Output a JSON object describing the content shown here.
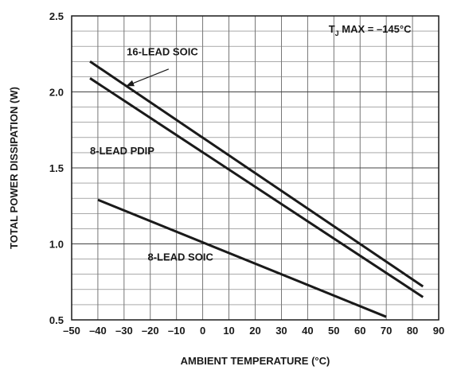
{
  "chart_data": {
    "type": "line",
    "xlabel": "AMBIENT TEMPERATURE (°C)",
    "ylabel": "TOTAL POWER DISSIPATION (W)",
    "xlim": [
      -50,
      90
    ],
    "ylim": [
      0.5,
      2.5
    ],
    "x_ticks": [
      -50,
      -40,
      -30,
      -20,
      -10,
      0,
      10,
      20,
      30,
      40,
      50,
      60,
      70,
      80,
      90
    ],
    "x_tick_labels": [
      "–50",
      "–40",
      "–30",
      "–20",
      "–10",
      "0",
      "10",
      "20",
      "30",
      "40",
      "50",
      "60",
      "70",
      "80",
      "90"
    ],
    "y_ticks": [
      0.5,
      1.0,
      1.5,
      2.0,
      2.5
    ],
    "y_tick_labels": [
      "0.5",
      "1.0",
      "1.5",
      "2.0",
      "2.5"
    ],
    "grid": {
      "vertical": true,
      "horizontal": true,
      "major_horizontal": [
        1.0,
        1.5,
        2.0
      ]
    },
    "legend": "none",
    "series": [
      {
        "name": "16-LEAD SOIC",
        "x": [
          -43,
          84
        ],
        "y": [
          2.2,
          0.72
        ],
        "color": "#1a1a1a"
      },
      {
        "name": "8-LEAD PDIP",
        "x": [
          -43,
          84
        ],
        "y": [
          2.09,
          0.65
        ],
        "color": "#1a1a1a"
      },
      {
        "name": "8-LEAD SOIC",
        "x": [
          -40,
          70
        ],
        "y": [
          1.29,
          0.52
        ],
        "color": "#1a1a1a"
      }
    ],
    "annotations": {
      "tj_prefix": "T",
      "tj_subscript": "J",
      "tj_rest": " MAX = –145°C",
      "pointer_arrow": {
        "from": [
          -13,
          2.15
        ],
        "to": [
          -29,
          2.04
        ]
      }
    }
  }
}
